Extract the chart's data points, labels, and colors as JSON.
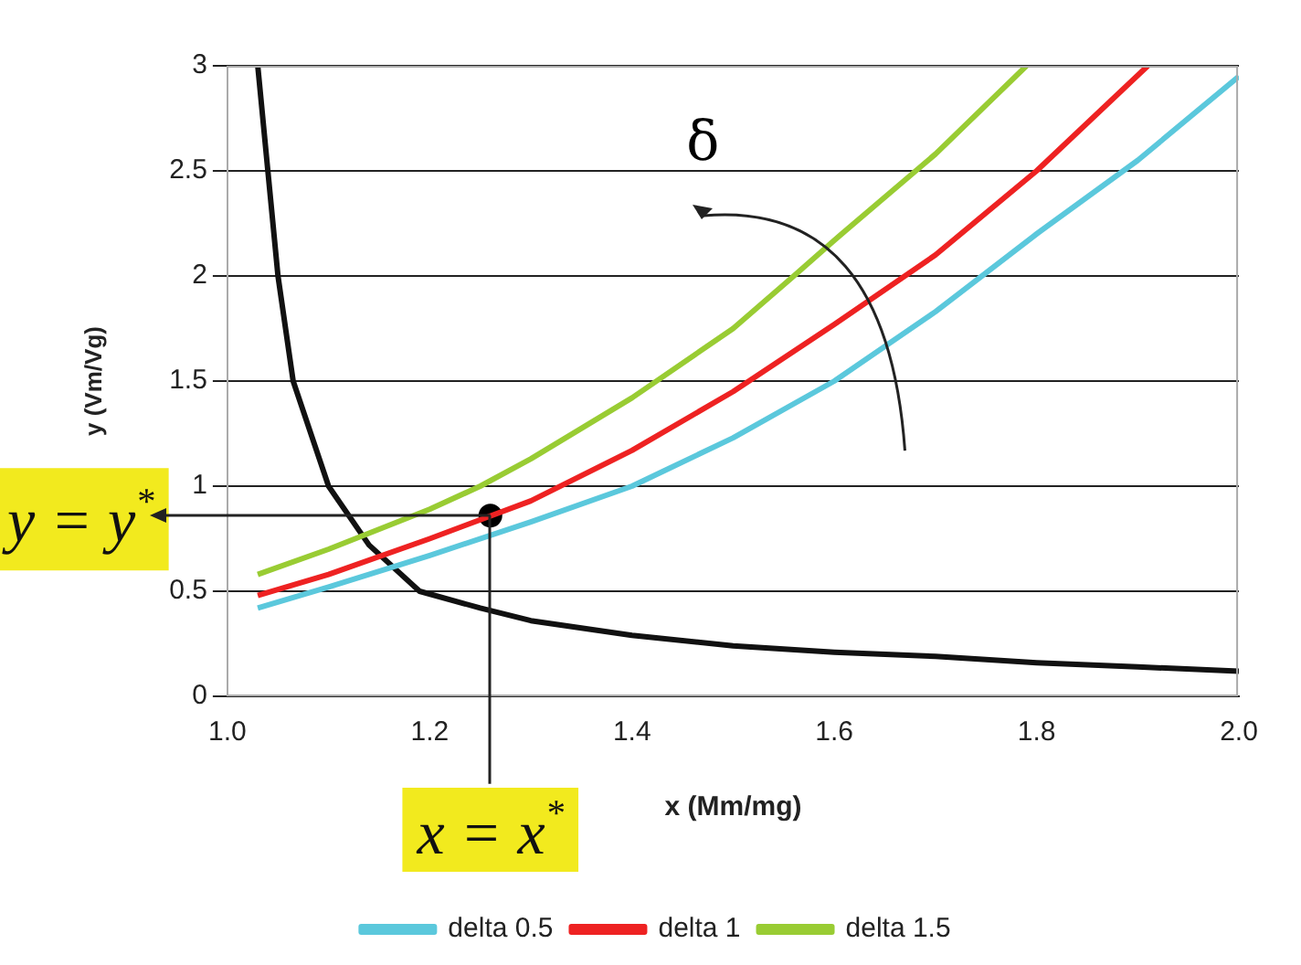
{
  "chart_data": {
    "type": "line",
    "xlabel": "x (Mm/mg)",
    "ylabel": "y (Vm/Vg)",
    "xlim": [
      1.0,
      2.0
    ],
    "xticks": [
      {
        "value": 1.0,
        "label": "1.0"
      },
      {
        "value": 1.2,
        "label": "1.2"
      },
      {
        "value": 1.4,
        "label": "1.4"
      },
      {
        "value": 1.6,
        "label": "1.6"
      },
      {
        "value": 1.8,
        "label": "1.8"
      },
      {
        "value": 2.0,
        "label": "2.0"
      }
    ],
    "ylim": [
      0,
      3
    ],
    "yticks": [
      0,
      0.5,
      1,
      1.5,
      2,
      2.5,
      3
    ],
    "grid": "y",
    "legend": "bottom",
    "marker": "none",
    "line_style": "solid",
    "series": [
      {
        "name": "delta 0.5",
        "color": "#5bc8dc",
        "x": [
          1.03,
          1.1,
          1.2,
          1.3,
          1.4,
          1.5,
          1.6,
          1.7,
          1.8,
          1.9,
          2.0
        ],
        "values": [
          0.42,
          0.52,
          0.67,
          0.83,
          1.0,
          1.23,
          1.5,
          1.83,
          2.2,
          2.55,
          2.95
        ]
      },
      {
        "name": "delta 1",
        "color": "#ee2222",
        "x": [
          1.03,
          1.1,
          1.2,
          1.3,
          1.4,
          1.5,
          1.6,
          1.7,
          1.8,
          1.91
        ],
        "values": [
          0.48,
          0.58,
          0.75,
          0.93,
          1.17,
          1.45,
          1.77,
          2.1,
          2.5,
          3.0
        ]
      },
      {
        "name": "delta 1.5",
        "color": "#99cc33",
        "x": [
          1.03,
          1.1,
          1.2,
          1.25,
          1.3,
          1.4,
          1.5,
          1.56,
          1.6,
          1.7,
          1.79
        ],
        "values": [
          0.58,
          0.7,
          0.89,
          1.0,
          1.13,
          1.42,
          1.75,
          2.0,
          2.17,
          2.58,
          3.0
        ]
      },
      {
        "color": "#111111",
        "x": [
          1.03,
          1.04,
          1.05,
          1.065,
          1.1,
          1.14,
          1.19,
          1.25,
          1.3,
          1.4,
          1.5,
          1.6,
          1.7,
          1.8,
          1.9,
          2.0
        ],
        "values": [
          3,
          2.5,
          2,
          1.5,
          1,
          0.72,
          0.5,
          0.42,
          0.36,
          0.29,
          0.24,
          0.21,
          0.19,
          0.16,
          0.14,
          0.12
        ]
      },
      {
        "type": "scatter",
        "marker": "circle",
        "color": "#000000",
        "x": [
          1.26
        ],
        "values": [
          0.86
        ]
      }
    ],
    "annotations": [
      "δ",
      {
        "text": "y = y$^{*}$",
        "x": 1.26,
        "y": 0.86
      },
      {
        "text": "x = x$^{*}$",
        "x": 1.26,
        "y": 0.86
      }
    ]
  }
}
